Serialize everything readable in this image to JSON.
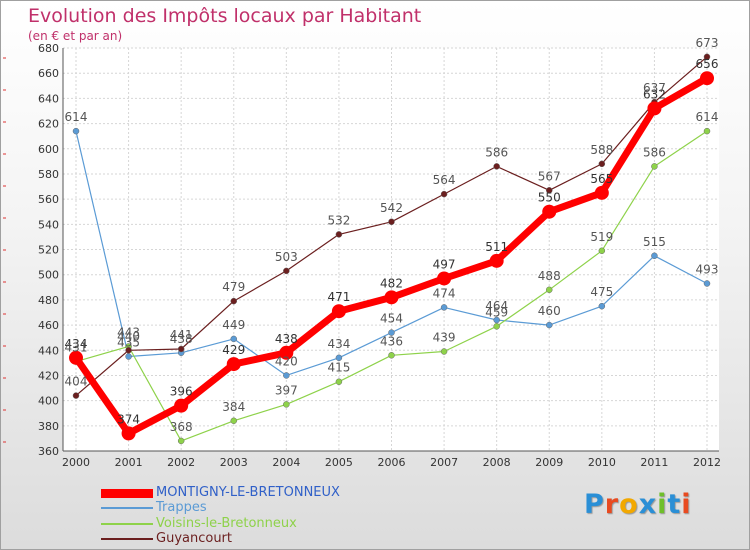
{
  "title": "Evolution des Impôts locaux par Habitant",
  "subtitle": "(en € et par an)",
  "logo": {
    "text": "Proxiti",
    "colors": [
      "#2a8fd6",
      "#e84a20",
      "#f2a800",
      "#2a8fd6",
      "#6fbf2a",
      "#2a8fd6",
      "#e84a20"
    ]
  },
  "chart_data": {
    "type": "line",
    "title": "Evolution des Impôts locaux par Habitant",
    "subtitle": "(en € et par an)",
    "xlabel": "",
    "ylabel": "",
    "x": [
      "2000",
      "2001",
      "2002",
      "2003",
      "2004",
      "2005",
      "2006",
      "2007",
      "2008",
      "2009",
      "2010",
      "2011",
      "2012"
    ],
    "ylim": [
      360,
      680
    ],
    "yticks": [
      360,
      380,
      400,
      420,
      440,
      460,
      480,
      500,
      520,
      540,
      560,
      580,
      600,
      620,
      640,
      660,
      680
    ],
    "grid": true,
    "legend": "bottom-left",
    "series": [
      {
        "name": "MONTIGNY-LE-BRETONNEUX",
        "color": "#ff0000",
        "labelColor": "#333333",
        "legendColor": "#3060c8",
        "thick": true,
        "values": [
          434,
          374,
          396,
          429,
          438,
          471,
          482,
          497,
          511,
          550,
          565,
          632,
          656
        ]
      },
      {
        "name": "Trappes",
        "color": "#5b9bd5",
        "labelColor": "#555555",
        "legendColor": "#5b9bd5",
        "thick": false,
        "values": [
          614,
          435,
          438,
          449,
          420,
          434,
          454,
          474,
          464,
          460,
          475,
          515,
          493
        ]
      },
      {
        "name": "Voisins-le-Bretonneux",
        "color": "#8ed24a",
        "labelColor": "#555555",
        "legendColor": "#8ed24a",
        "thick": false,
        "values": [
          431,
          443,
          368,
          384,
          397,
          415,
          436,
          439,
          459,
          488,
          519,
          586,
          614
        ]
      },
      {
        "name": "Guyancourt",
        "color": "#6b1f1f",
        "labelColor": "#555555",
        "legendColor": "#6b1f1f",
        "thick": false,
        "values": [
          404,
          440,
          441,
          479,
          503,
          532,
          542,
          564,
          586,
          567,
          588,
          637,
          673
        ]
      }
    ]
  }
}
